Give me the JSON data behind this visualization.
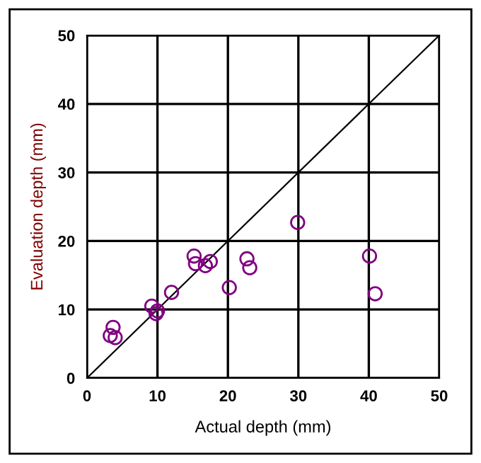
{
  "chart_data": {
    "type": "scatter",
    "xlabel": "Actual depth (mm)",
    "ylabel": "Evaluation depth (mm)",
    "xlim": [
      0,
      50
    ],
    "ylim": [
      0,
      50
    ],
    "xticks": [
      0,
      10,
      20,
      30,
      40,
      50
    ],
    "yticks": [
      0,
      10,
      20,
      30,
      40,
      50
    ],
    "grid": true,
    "legend": false,
    "series": [
      {
        "color": "#800080",
        "marker": "circle",
        "x": [
          3.7,
          3.3,
          4.0,
          9.2,
          10.0,
          9.8,
          12.0,
          15.2,
          15.4,
          16.8,
          17.5,
          20.2,
          22.7,
          23.1,
          29.9,
          40.1,
          40.9
        ],
        "values": [
          7.4,
          6.2,
          5.9,
          10.5,
          9.8,
          9.4,
          12.5,
          17.8,
          16.7,
          16.4,
          17.0,
          13.2,
          17.4,
          16.1,
          22.7,
          17.8,
          12.3
        ]
      },
      {
        "type": "line",
        "color": "#000000",
        "marker": "none",
        "x": [
          0,
          50
        ],
        "values": [
          0,
          50
        ]
      }
    ]
  }
}
